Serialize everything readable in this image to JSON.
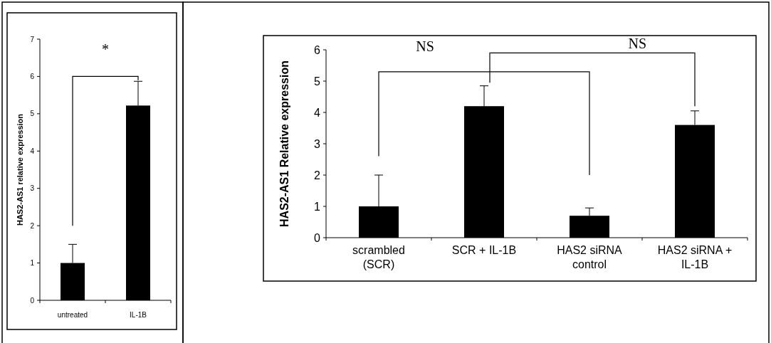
{
  "chart_data": [
    {
      "type": "bar",
      "ylabel": "HAS2-AS1 relative expression",
      "categories": [
        "untreated",
        "IL-1B"
      ],
      "values": [
        1.0,
        5.22
      ],
      "errors": [
        0.5,
        0.65
      ],
      "color": "#000000",
      "ylim": [
        0,
        7
      ],
      "yticks": [
        0,
        1,
        2,
        3,
        4,
        5,
        6,
        7
      ],
      "grid": false,
      "annotations": [
        "*"
      ]
    },
    {
      "type": "bar",
      "ylabel": "HAS2-AS1 Relative expression",
      "categories": [
        "scrambled\n(SCR)",
        "SCR + IL-1B",
        "HAS2 siRNA\ncontrol",
        "HAS2 siRNA +\nIL-1B"
      ],
      "values": [
        1.0,
        4.2,
        0.7,
        3.6
      ],
      "errors": [
        1.0,
        0.65,
        0.25,
        0.45
      ],
      "color": "#000000",
      "ylim": [
        0,
        6
      ],
      "yticks": [
        0,
        1,
        2,
        3,
        4,
        5,
        6
      ],
      "grid": false,
      "annotations": [
        "NS",
        "NS"
      ]
    }
  ]
}
